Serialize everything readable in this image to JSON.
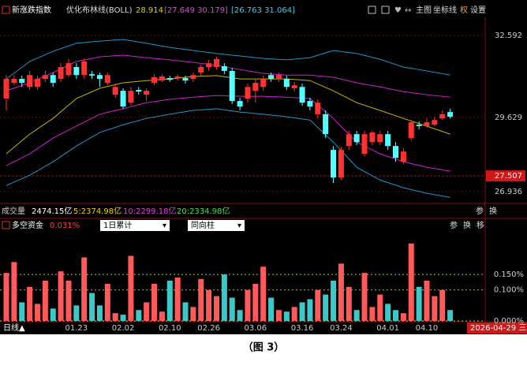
{
  "header": {
    "index_name": "新涨跌指数",
    "indicator": "优化布林线(BOLL)",
    "mid": "28.914",
    "inner": "[27.649 30.179]",
    "outer": "[26.763 31.064]",
    "buttons": [
      "主图",
      "坐标线",
      "权",
      "设置"
    ]
  },
  "chart_data": [
    {
      "type": "candlestick",
      "categories": [
        null,
        null,
        null,
        null,
        null,
        null,
        null,
        null,
        null,
        "01.23",
        null,
        null,
        null,
        null,
        null,
        "02.02",
        null,
        null,
        null,
        null,
        null,
        "02.10",
        null,
        null,
        null,
        null,
        "02.26",
        null,
        null,
        null,
        null,
        null,
        "03.06",
        null,
        null,
        null,
        null,
        null,
        "03.16",
        null,
        null,
        null,
        null,
        "03.24",
        null,
        null,
        null,
        null,
        null,
        "04.01",
        null,
        null,
        null,
        null,
        "04.10",
        null,
        null,
        null
      ],
      "open": [
        30.31,
        30.88,
        31.02,
        30.73,
        30.73,
        31.02,
        31.16,
        31.02,
        31.16,
        31.45,
        31.16,
        31.19,
        31.16,
        30.88,
        30.45,
        30.59,
        30.16,
        30.62,
        30.45,
        30.88,
        30.96,
        31.05,
        31.05,
        31.05,
        31.02,
        31.25,
        31.45,
        31.45,
        31.48,
        31.31,
        30.22,
        30.31,
        30.59,
        30.73,
        31.16,
        31.02,
        31.02,
        30.68,
        30.73,
        30.22,
        29.74,
        29.74,
        28.45,
        27.45,
        28.59,
        29.02,
        28.31,
        28.73,
        28.73,
        29.02,
        28.59,
        28.02,
        28.88,
        29.36,
        29.31,
        29.36,
        29.59,
        29.82
      ],
      "high": [
        31.16,
        31.16,
        31.14,
        31.31,
        31.14,
        31.31,
        31.25,
        31.59,
        31.74,
        31.59,
        31.76,
        31.31,
        31.25,
        31.25,
        30.85,
        30.68,
        30.73,
        30.73,
        30.68,
        31.19,
        31.19,
        31.14,
        31.19,
        31.14,
        31.25,
        31.53,
        31.71,
        31.82,
        31.59,
        31.42,
        30.34,
        30.85,
        31.02,
        31.14,
        31.25,
        31.25,
        31.14,
        30.91,
        30.85,
        30.34,
        30.28,
        29.88,
        28.59,
        28.56,
        29.14,
        29.14,
        29.14,
        29.16,
        29.14,
        29.14,
        28.73,
        28.51,
        29.53,
        29.48,
        29.59,
        29.65,
        29.88,
        29.94
      ],
      "low": [
        29.88,
        30.79,
        30.73,
        30.62,
        30.62,
        30.91,
        30.73,
        30.91,
        31.08,
        31.02,
        31.02,
        31.02,
        30.73,
        30.79,
        30.34,
        29.94,
        30.05,
        30.45,
        30.22,
        30.79,
        30.91,
        30.91,
        30.96,
        30.85,
        30.91,
        31.14,
        31.31,
        31.36,
        31.19,
        30.11,
        29.88,
        30.16,
        30.16,
        30.59,
        30.91,
        30.91,
        30.62,
        30.56,
        30.05,
        29.88,
        29.59,
        28.88,
        27.25,
        27.36,
        28.45,
        28.62,
        28.22,
        28.62,
        28.62,
        28.45,
        28.02,
        27.93,
        28.79,
        29.19,
        29.25,
        29.31,
        29.53,
        29.59
      ],
      "close": [
        31.02,
        31.02,
        30.88,
        31.16,
        31.02,
        31.16,
        30.88,
        31.45,
        31.59,
        31.16,
        31.65,
        31.14,
        31.02,
        31.16,
        30.73,
        30.02,
        30.59,
        30.56,
        30.59,
        31.08,
        31.11,
        30.99,
        31.11,
        30.96,
        31.16,
        31.45,
        31.59,
        31.74,
        31.31,
        30.22,
        30.02,
        30.73,
        30.88,
        31.02,
        31.02,
        31.16,
        30.73,
        30.79,
        30.16,
        30.02,
        30.16,
        29.02,
        27.45,
        28.45,
        29.02,
        28.73,
        29.02,
        29.08,
        29.02,
        28.59,
        28.16,
        28.39,
        29.45,
        29.31,
        29.45,
        29.53,
        29.74,
        29.65
      ],
      "up_color": "#ff3232",
      "down_color": "#54ffff",
      "band_x": [
        0,
        3,
        6,
        9,
        12,
        15,
        18,
        21,
        24,
        27,
        30,
        33,
        36,
        39,
        42,
        45,
        48,
        51,
        54,
        57
      ],
      "bands": [
        {
          "color": "#1e96c8",
          "values": [
            31.02,
            31.65,
            32.02,
            32.31,
            32.39,
            32.45,
            32.31,
            32.16,
            32.05,
            31.94,
            31.85,
            31.76,
            31.71,
            31.79,
            32.05,
            31.94,
            31.73,
            31.45,
            31.31,
            31.16
          ]
        },
        {
          "color": "#d020d0",
          "values": [
            30.59,
            30.88,
            31.25,
            31.65,
            31.82,
            31.88,
            31.79,
            31.71,
            31.62,
            31.51,
            31.36,
            31.22,
            31.16,
            31.16,
            31.08,
            30.88,
            30.73,
            30.56,
            30.45,
            30.36
          ]
        },
        {
          "color": "#c8b400",
          "values": [
            28.31,
            29.02,
            29.59,
            30.31,
            30.68,
            30.88,
            30.96,
            31.02,
            31.11,
            31.14,
            31.02,
            31.02,
            31.02,
            30.96,
            30.59,
            30.16,
            29.88,
            29.59,
            29.31,
            29.02
          ]
        },
        {
          "color": "#d020d0",
          "values": [
            27.88,
            28.31,
            28.88,
            29.31,
            29.74,
            29.94,
            30.16,
            30.28,
            30.36,
            30.42,
            30.39,
            30.39,
            30.36,
            30.31,
            29.59,
            28.73,
            28.31,
            28.02,
            27.82,
            27.68
          ]
        },
        {
          "color": "#1e96c8",
          "values": [
            27.16,
            27.53,
            28.02,
            28.59,
            29.08,
            29.36,
            29.59,
            29.74,
            29.88,
            29.94,
            29.82,
            29.74,
            29.65,
            29.53,
            28.73,
            27.82,
            27.36,
            27.08,
            26.88,
            26.73
          ]
        }
      ],
      "ylim": [
        26.54,
        33.25
      ],
      "yticks": [
        32.592,
        29.629,
        26.936
      ],
      "price_marker": 27.507,
      "grid": true
    },
    {
      "type": "bar",
      "title": "多空资金",
      "latest": "0.031%",
      "selectors": [
        "1日累计",
        "同向柱"
      ],
      "buttons": [
        "参",
        "换",
        "移"
      ],
      "values": [
        0.155,
        0.19,
        0.06,
        0.11,
        0.055,
        0.13,
        0.04,
        0.16,
        0.13,
        0.05,
        0.205,
        0.09,
        0.05,
        0.12,
        0.025,
        0.02,
        0.21,
        0.035,
        0.06,
        0.12,
        0.03,
        0.13,
        0.14,
        0.06,
        0.045,
        0.135,
        0.1,
        0.08,
        0.15,
        0.075,
        0.035,
        0.1,
        0.12,
        0.175,
        0.075,
        0.035,
        0.03,
        0.045,
        0.06,
        0.07,
        0.1,
        0.085,
        0.13,
        0.185,
        0.11,
        0.035,
        0.155,
        0.045,
        0.085,
        0.055,
        0.035,
        0.025,
        0.25,
        0.11,
        0.13,
        0.08,
        0.1,
        0.035
      ],
      "up_color": "#ff5a5a",
      "down_color": "#3cc8c8",
      "ylim": [
        0,
        0.28
      ],
      "yticks": [
        {
          "value": 0,
          "label": "0.000%"
        },
        {
          "value": 0.1,
          "label": "0.100%"
        },
        {
          "value": 0.15,
          "label": "0.150%"
        }
      ],
      "grid_color": "#c8c800"
    }
  ],
  "volume_row": {
    "label": "成交量",
    "total": "2474.15亿",
    "ma5": "5:2374.98亿",
    "ma10": "10:2299.18亿",
    "ma20": "20:2334.98亿",
    "buttons": [
      "参",
      "换"
    ]
  },
  "footer": {
    "period": "日线▲",
    "date": "2026-04-29 三"
  },
  "caption": "（图 3）"
}
